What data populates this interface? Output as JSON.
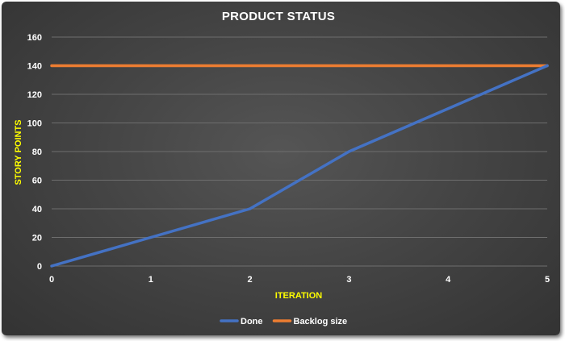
{
  "chart_data": {
    "type": "line",
    "title": "PRODUCT STATUS",
    "xlabel": "ITERATION",
    "ylabel": "STORY POINTS",
    "x": [
      0,
      1,
      2,
      3,
      4,
      5
    ],
    "xlim": [
      0,
      5
    ],
    "ylim": [
      0,
      160
    ],
    "y_ticks": [
      0,
      20,
      40,
      60,
      80,
      100,
      120,
      140,
      160
    ],
    "grid": true,
    "legend_position": "bottom",
    "background": "#444444",
    "series": [
      {
        "name": "Done",
        "color": "#4472C4",
        "values": [
          0,
          20,
          40,
          80,
          110,
          140
        ]
      },
      {
        "name": "Backlog size",
        "color": "#ED7D31",
        "values": [
          140,
          140,
          140,
          140,
          140,
          140
        ]
      }
    ]
  }
}
